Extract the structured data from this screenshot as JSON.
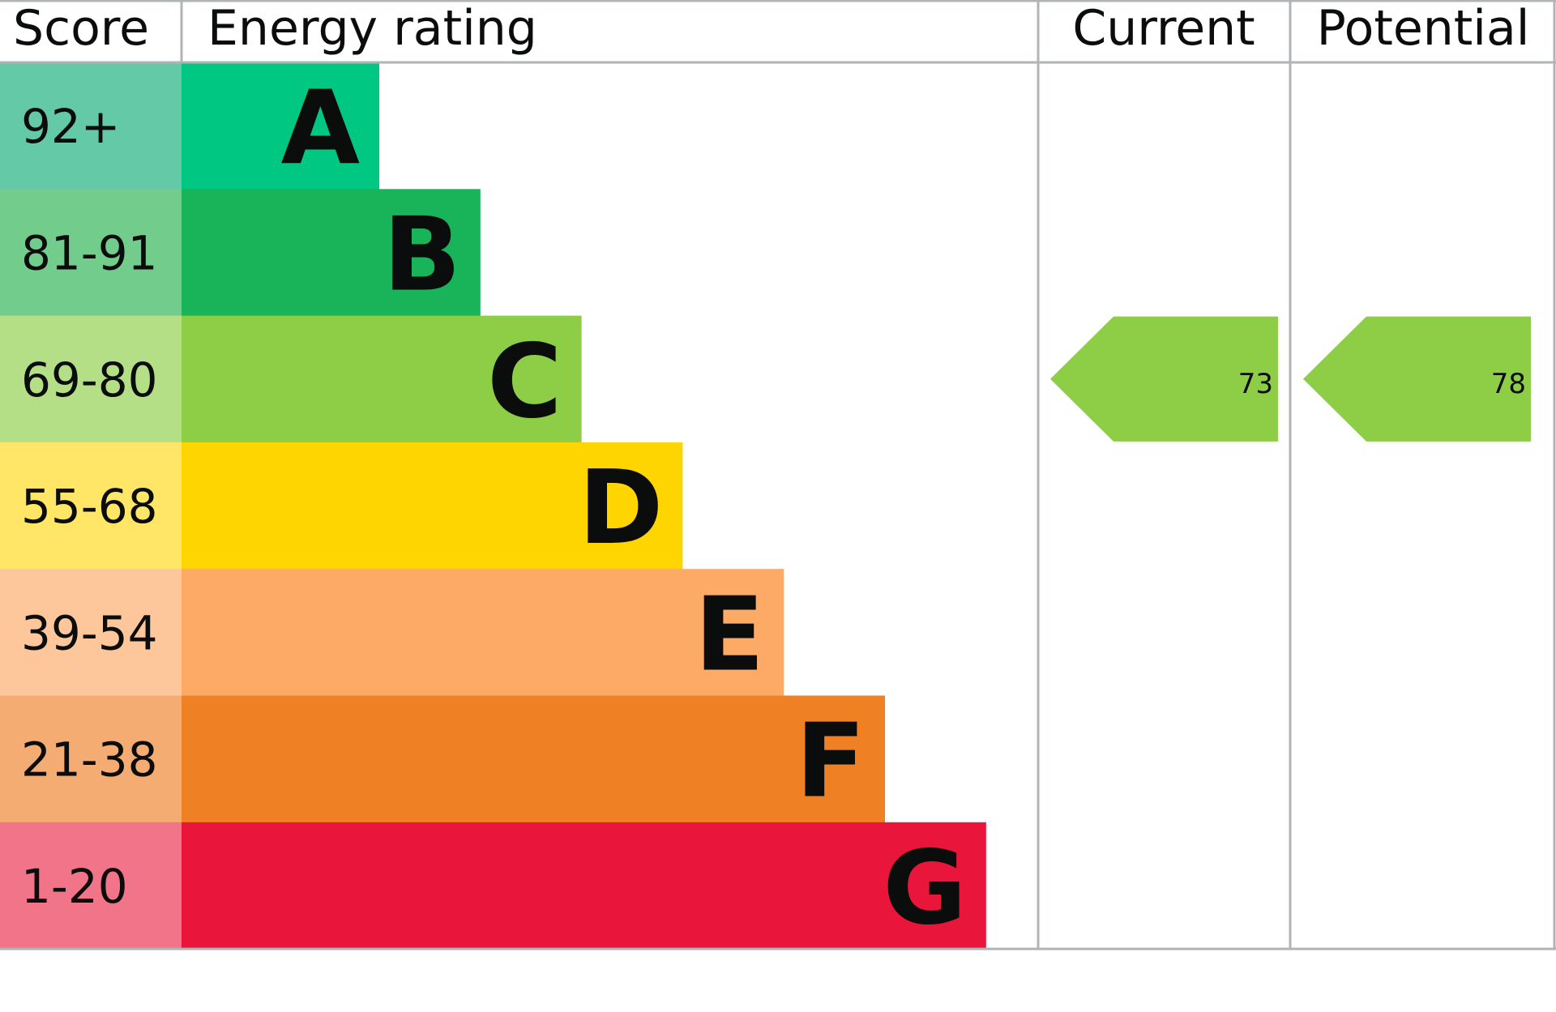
{
  "chart_data": {
    "type": "bar",
    "headers": {
      "score": "Score",
      "rating": "Energy rating",
      "current": "Current",
      "potential": "Potential"
    },
    "bands": [
      {
        "letter": "A",
        "range": "92+",
        "color": "#00c781",
        "score_color": "#64c9a6"
      },
      {
        "letter": "B",
        "range": "81-91",
        "color": "#19b459",
        "score_color": "#72cd8c"
      },
      {
        "letter": "C",
        "range": "69-80",
        "color": "#8dce46",
        "score_color": "#b4df86"
      },
      {
        "letter": "D",
        "range": "55-68",
        "color": "#ffd500",
        "score_color": "#ffe666"
      },
      {
        "letter": "E",
        "range": "39-54",
        "color": "#fcaa65",
        "score_color": "#fdc79b"
      },
      {
        "letter": "F",
        "range": "21-38",
        "color": "#ef8023",
        "score_color": "#f4ac73"
      },
      {
        "letter": "G",
        "range": "1-20",
        "color": "#e9153b",
        "score_color": "#f17489"
      }
    ],
    "current": {
      "value": "73",
      "band": "C",
      "color": "#8dce46"
    },
    "potential": {
      "value": "78",
      "band": "C",
      "color": "#8dce46"
    },
    "grid_color": "#b1b4b6"
  }
}
